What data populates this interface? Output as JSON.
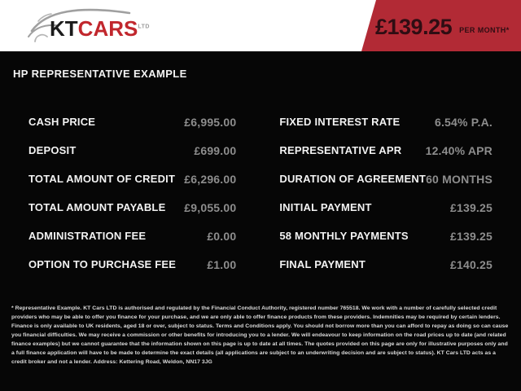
{
  "header": {
    "logo": {
      "kt": "KT",
      "cars": "CARS",
      "ltd": "LTD"
    },
    "price_banner": {
      "amount": "£139.25",
      "suffix": "PER MONTH*"
    }
  },
  "title": "HP REPRESENTATIVE EXAMPLE",
  "table": {
    "left": [
      {
        "label": "CASH PRICE",
        "value": "£6,995.00"
      },
      {
        "label": "DEPOSIT",
        "value": "£699.00"
      },
      {
        "label": "TOTAL AMOUNT OF CREDIT",
        "value": "£6,296.00"
      },
      {
        "label": "TOTAL AMOUNT PAYABLE",
        "value": "£9,055.00"
      },
      {
        "label": "ADMINISTRATION FEE",
        "value": "£0.00"
      },
      {
        "label": "OPTION TO PURCHASE FEE",
        "value": "£1.00"
      }
    ],
    "right": [
      {
        "label": "FIXED INTEREST RATE",
        "value": "6.54% P.A."
      },
      {
        "label": "REPRESENTATIVE APR",
        "value": "12.40% APR"
      },
      {
        "label": "DURATION OF AGREEMENT",
        "value": "60 MONTHS"
      },
      {
        "label": "INITIAL PAYMENT",
        "value": "£139.25"
      },
      {
        "label": "58 MONTHLY PAYMENTS",
        "value": "£139.25"
      },
      {
        "label": "FINAL PAYMENT",
        "value": "£140.25"
      }
    ]
  },
  "disclaimer": "* Representative Example. KT Cars LTD is authorised and regulated by the Financial Conduct Authority, registered number 765518. We work with a number of carefully selected credit providers who may be able to offer you finance for your purchase, and we are only able to offer finance products from these providers. Indemnities may be required by certain lenders. Finance is only available to UK residents, aged 18 or over, subject to status. Terms and Conditions apply. You should not borrow more than you can afford to repay as doing so can cause you financial difficulties. We may receive a commission or other benefits for introducing you to a lender. We will endeavour to keep information on the road prices up to date (and related finance examples) but we cannot guarantee that the information shown on this page is up to date at all times. The quotes provided on this page are only for illustrative purposes only and a full finance application will have to be made to determine the exact details (all applications are subject to an underwriting decision and are subject to status). KT Cars LTD acts as a credit broker and not a lender. Address: Kettering Road, Weldon, NN17 3JG",
  "colors": {
    "banner_red": "#b22a35",
    "logo_red": "#c1272d",
    "banner_text": "#2f0d13",
    "value_gray": "#8d8d8d",
    "background_black": "#060606"
  }
}
